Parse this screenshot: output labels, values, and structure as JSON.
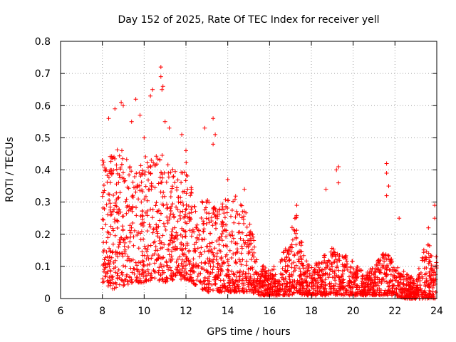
{
  "chart_data": {
    "type": "scatter",
    "title": "Day 152 of 2025, Rate Of TEC Index for receiver yell",
    "xlabel": "GPS time / hours",
    "ylabel": "ROTI / TECUs",
    "xlim": [
      6,
      24
    ],
    "ylim": [
      0,
      0.8
    ],
    "xticks": [
      6,
      8,
      10,
      12,
      14,
      16,
      18,
      20,
      22,
      24
    ],
    "yticks": [
      0,
      0.1,
      0.2,
      0.3,
      0.4,
      0.5,
      0.6,
      0.7,
      0.8
    ],
    "grid": true,
    "marker": "+",
    "color": "#ff0000",
    "envelope": [
      [
        8.0,
        0.05,
        0.43
      ],
      [
        8.5,
        0.03,
        0.46
      ],
      [
        9.0,
        0.04,
        0.47
      ],
      [
        9.5,
        0.05,
        0.42
      ],
      [
        10.0,
        0.05,
        0.45
      ],
      [
        10.5,
        0.06,
        0.46
      ],
      [
        11.0,
        0.05,
        0.44
      ],
      [
        11.5,
        0.06,
        0.4
      ],
      [
        12.0,
        0.06,
        0.43
      ],
      [
        12.5,
        0.04,
        0.27
      ],
      [
        13.0,
        0.02,
        0.33
      ],
      [
        13.5,
        0.02,
        0.27
      ],
      [
        14.0,
        0.02,
        0.34
      ],
      [
        14.5,
        0.02,
        0.32
      ],
      [
        15.0,
        0.02,
        0.26
      ],
      [
        15.5,
        0.01,
        0.11
      ],
      [
        16.0,
        0.01,
        0.09
      ],
      [
        16.5,
        0.01,
        0.12
      ],
      [
        17.0,
        0.01,
        0.2
      ],
      [
        17.3,
        0.02,
        0.29
      ],
      [
        17.6,
        0.01,
        0.15
      ],
      [
        18.0,
        0.01,
        0.1
      ],
      [
        18.5,
        0.01,
        0.13
      ],
      [
        19.0,
        0.01,
        0.16
      ],
      [
        19.5,
        0.01,
        0.14
      ],
      [
        20.0,
        0.01,
        0.12
      ],
      [
        20.5,
        0.01,
        0.08
      ],
      [
        21.0,
        0.01,
        0.1
      ],
      [
        21.5,
        0.01,
        0.15
      ],
      [
        22.0,
        0.01,
        0.11
      ],
      [
        22.5,
        0.0,
        0.08
      ],
      [
        23.0,
        0.0,
        0.06
      ],
      [
        23.5,
        0.0,
        0.18
      ],
      [
        24.0,
        0.0,
        0.13
      ]
    ],
    "outliers": [
      [
        8.0,
        0.43
      ],
      [
        8.3,
        0.56
      ],
      [
        8.6,
        0.59
      ],
      [
        8.9,
        0.61
      ],
      [
        9.0,
        0.6
      ],
      [
        9.4,
        0.55
      ],
      [
        9.6,
        0.62
      ],
      [
        9.8,
        0.57
      ],
      [
        10.0,
        0.5
      ],
      [
        10.3,
        0.63
      ],
      [
        10.4,
        0.65
      ],
      [
        10.8,
        0.72
      ],
      [
        10.8,
        0.69
      ],
      [
        10.9,
        0.66
      ],
      [
        10.85,
        0.65
      ],
      [
        11.0,
        0.55
      ],
      [
        11.2,
        0.53
      ],
      [
        11.8,
        0.51
      ],
      [
        12.0,
        0.46
      ],
      [
        12.9,
        0.53
      ],
      [
        13.3,
        0.56
      ],
      [
        13.4,
        0.51
      ],
      [
        13.3,
        0.48
      ],
      [
        14.0,
        0.37
      ],
      [
        14.8,
        0.34
      ],
      [
        17.3,
        0.29
      ],
      [
        18.7,
        0.34
      ],
      [
        19.2,
        0.4
      ],
      [
        19.3,
        0.41
      ],
      [
        19.3,
        0.36
      ],
      [
        21.6,
        0.42
      ],
      [
        21.6,
        0.39
      ],
      [
        21.7,
        0.35
      ],
      [
        21.6,
        0.32
      ],
      [
        22.2,
        0.25
      ],
      [
        23.6,
        0.22
      ],
      [
        23.9,
        0.29
      ],
      [
        23.9,
        0.25
      ]
    ]
  }
}
